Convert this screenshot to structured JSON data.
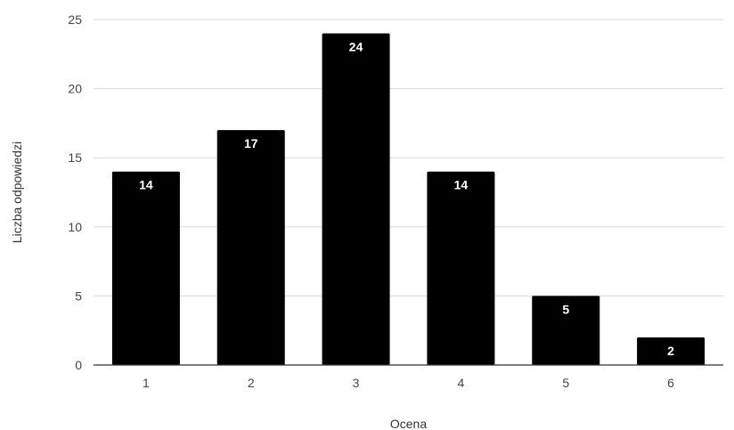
{
  "chart_data": {
    "type": "bar",
    "title": "",
    "xlabel": "Ocena",
    "ylabel": "Liczba odpowiedzi",
    "categories": [
      "1",
      "2",
      "3",
      "4",
      "5",
      "6"
    ],
    "values": [
      14,
      17,
      24,
      14,
      5,
      2
    ],
    "data_labels": [
      "14",
      "17",
      "24",
      "14",
      "5",
      "2"
    ],
    "ylim": [
      0,
      25
    ],
    "yticks": [
      0,
      5,
      10,
      15,
      20,
      25
    ],
    "ytick_labels": [
      "0",
      "5",
      "10",
      "15",
      "20",
      "25"
    ],
    "grid": true,
    "legend": "none",
    "colors": {
      "bar": "#000000",
      "grid": "#d9d9d9",
      "axis": "#333333",
      "data_label": "#ffffff"
    }
  }
}
